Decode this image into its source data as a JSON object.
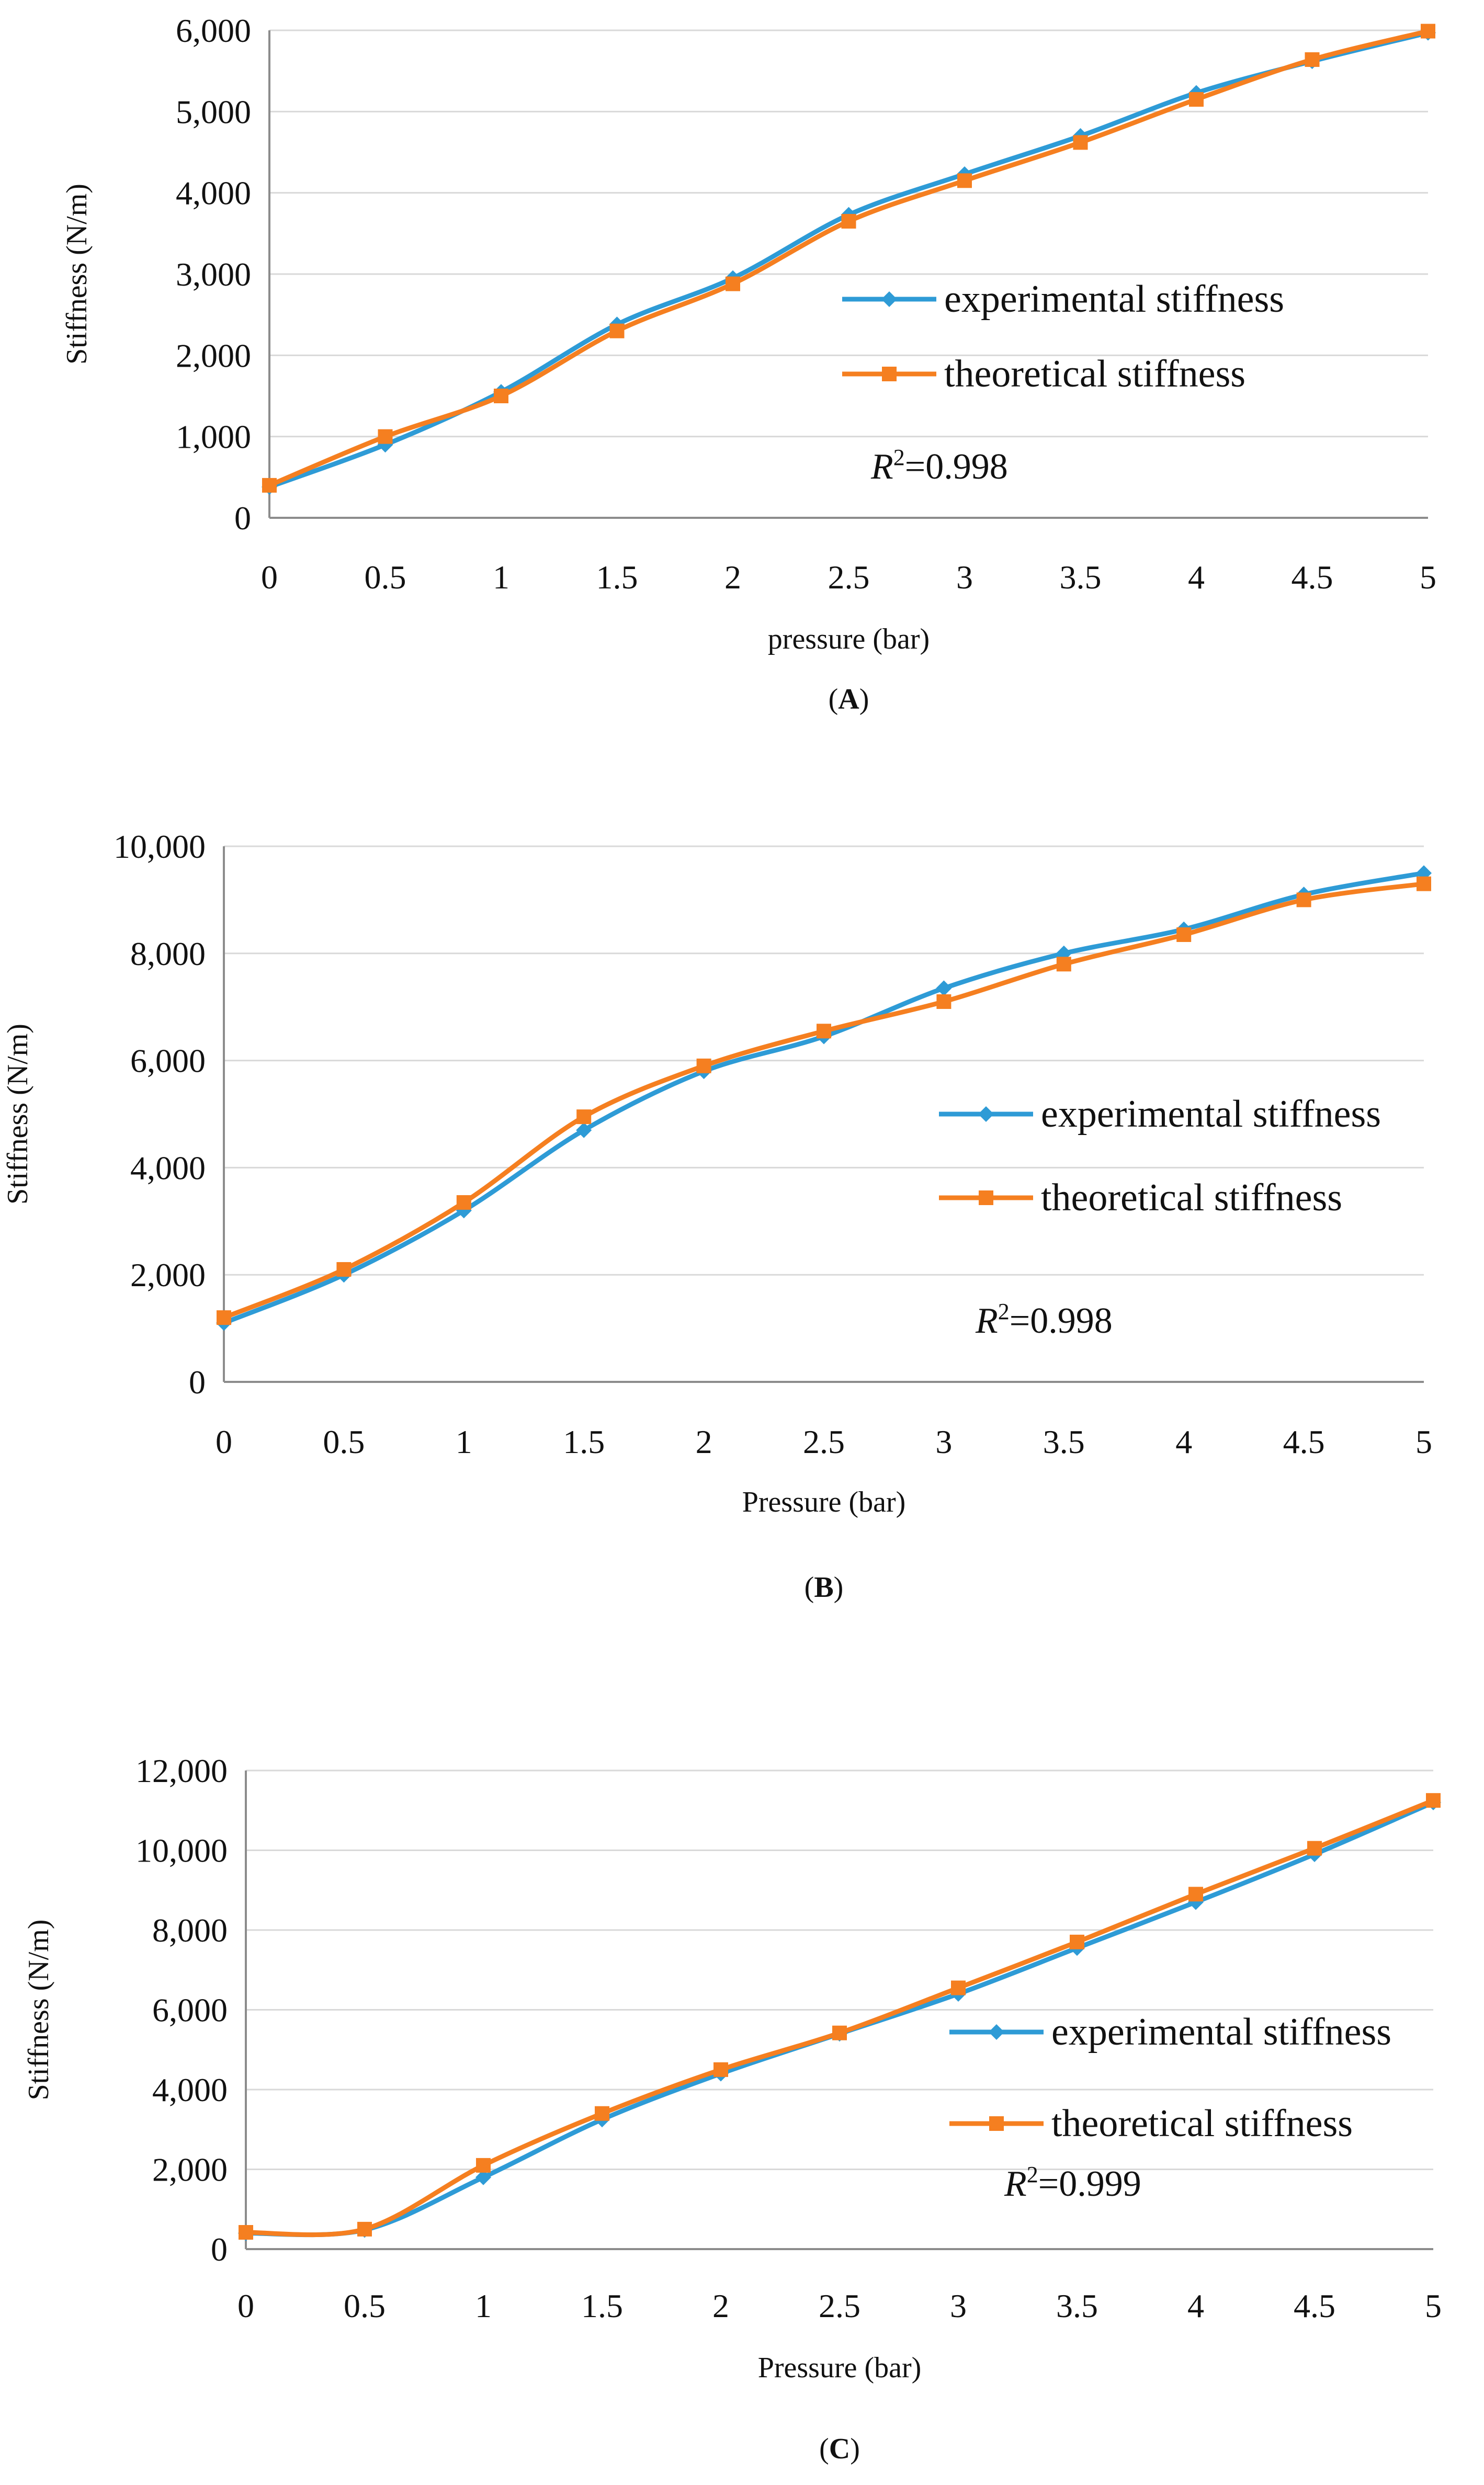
{
  "figure": {
    "panels": [
      "A",
      "B",
      "C"
    ]
  },
  "chart_data": [
    {
      "type": "line",
      "caption": "(A)",
      "xlabel": "pressure (bar)",
      "ylabel": "Stiffness (N/m)",
      "x": [
        0,
        0.5,
        1,
        1.5,
        2,
        2.5,
        3,
        3.5,
        4,
        4.5,
        5
      ],
      "x_tick_labels": [
        "0",
        "0.5",
        "1",
        "1.5",
        "2",
        "2.5",
        "3",
        "3.5",
        "4",
        "4.5",
        "5"
      ],
      "ylim": [
        0,
        6000
      ],
      "y_ticks": [
        0,
        1000,
        2000,
        3000,
        4000,
        5000,
        6000
      ],
      "y_tick_labels": [
        "0",
        "1,000",
        "2,000",
        "3,000",
        "4,000",
        "5,000",
        "6,000"
      ],
      "grid": "horizontal",
      "legend_position": "right",
      "annotation": {
        "r_label": "R",
        "r_exp": "2",
        "r_value": "=0.998"
      },
      "series": [
        {
          "name": "experimental stiffness",
          "color": "#2e9bd6",
          "marker": "diamond",
          "values": [
            380,
            900,
            1550,
            2380,
            2950,
            3730,
            4230,
            4700,
            5230,
            5620,
            5970
          ]
        },
        {
          "name": "theoretical stiffness",
          "color": "#f57f20",
          "marker": "square",
          "values": [
            400,
            1000,
            1500,
            2300,
            2880,
            3650,
            4150,
            4620,
            5150,
            5640,
            5990
          ]
        }
      ]
    },
    {
      "type": "line",
      "caption": "(B)",
      "xlabel": "Pressure (bar)",
      "ylabel": "Stiffness (N/m)",
      "x": [
        0,
        0.5,
        1,
        1.5,
        2,
        2.5,
        3,
        3.5,
        4,
        4.5,
        5
      ],
      "x_tick_labels": [
        "0",
        "0.5",
        "1",
        "1.5",
        "2",
        "2.5",
        "3",
        "3.5",
        "4",
        "4.5",
        "5"
      ],
      "ylim": [
        0,
        10000
      ],
      "y_ticks": [
        0,
        2000,
        4000,
        6000,
        8000,
        10000
      ],
      "y_tick_labels": [
        "0",
        "2,000",
        "4,000",
        "6,000",
        "8,000",
        "10,000"
      ],
      "grid": "horizontal",
      "legend_position": "right",
      "annotation": {
        "r_label": "R",
        "r_exp": "2",
        "r_value": "=0.998"
      },
      "series": [
        {
          "name": "experimental stiffness",
          "color": "#2e9bd6",
          "marker": "diamond",
          "values": [
            1100,
            2000,
            3200,
            4700,
            5800,
            6450,
            7350,
            8000,
            8450,
            9100,
            9500
          ]
        },
        {
          "name": "theoretical stiffness",
          "color": "#f57f20",
          "marker": "square",
          "values": [
            1200,
            2100,
            3350,
            4950,
            5900,
            6550,
            7100,
            7800,
            8350,
            9000,
            9300
          ]
        }
      ]
    },
    {
      "type": "line",
      "caption": "(C)",
      "xlabel": "Pressure (bar)",
      "ylabel": "Stiffness (N/m)",
      "x": [
        0,
        0.5,
        1,
        1.5,
        2,
        2.5,
        3,
        3.5,
        4,
        4.5,
        5
      ],
      "x_tick_labels": [
        "0",
        "0.5",
        "1",
        "1.5",
        "2",
        "2.5",
        "3",
        "3.5",
        "4",
        "4.5",
        "5"
      ],
      "ylim": [
        0,
        12000
      ],
      "y_ticks": [
        0,
        2000,
        4000,
        6000,
        8000,
        10000,
        12000
      ],
      "y_tick_labels": [
        "0",
        "2,000",
        "4,000",
        "6,000",
        "8,000",
        "10,000",
        "12,000"
      ],
      "grid": "horizontal",
      "legend_position": "right",
      "annotation": {
        "r_label": "R",
        "r_exp": "2",
        "r_value": "=0.999"
      },
      "series": [
        {
          "name": "experimental stiffness",
          "color": "#2e9bd6",
          "marker": "diamond",
          "values": [
            400,
            480,
            1800,
            3250,
            4400,
            5400,
            6400,
            7550,
            8700,
            9900,
            11200
          ]
        },
        {
          "name": "theoretical stiffness",
          "color": "#f57f20",
          "marker": "square",
          "values": [
            420,
            500,
            2100,
            3400,
            4500,
            5420,
            6550,
            7700,
            8900,
            10050,
            11250
          ]
        }
      ]
    }
  ]
}
